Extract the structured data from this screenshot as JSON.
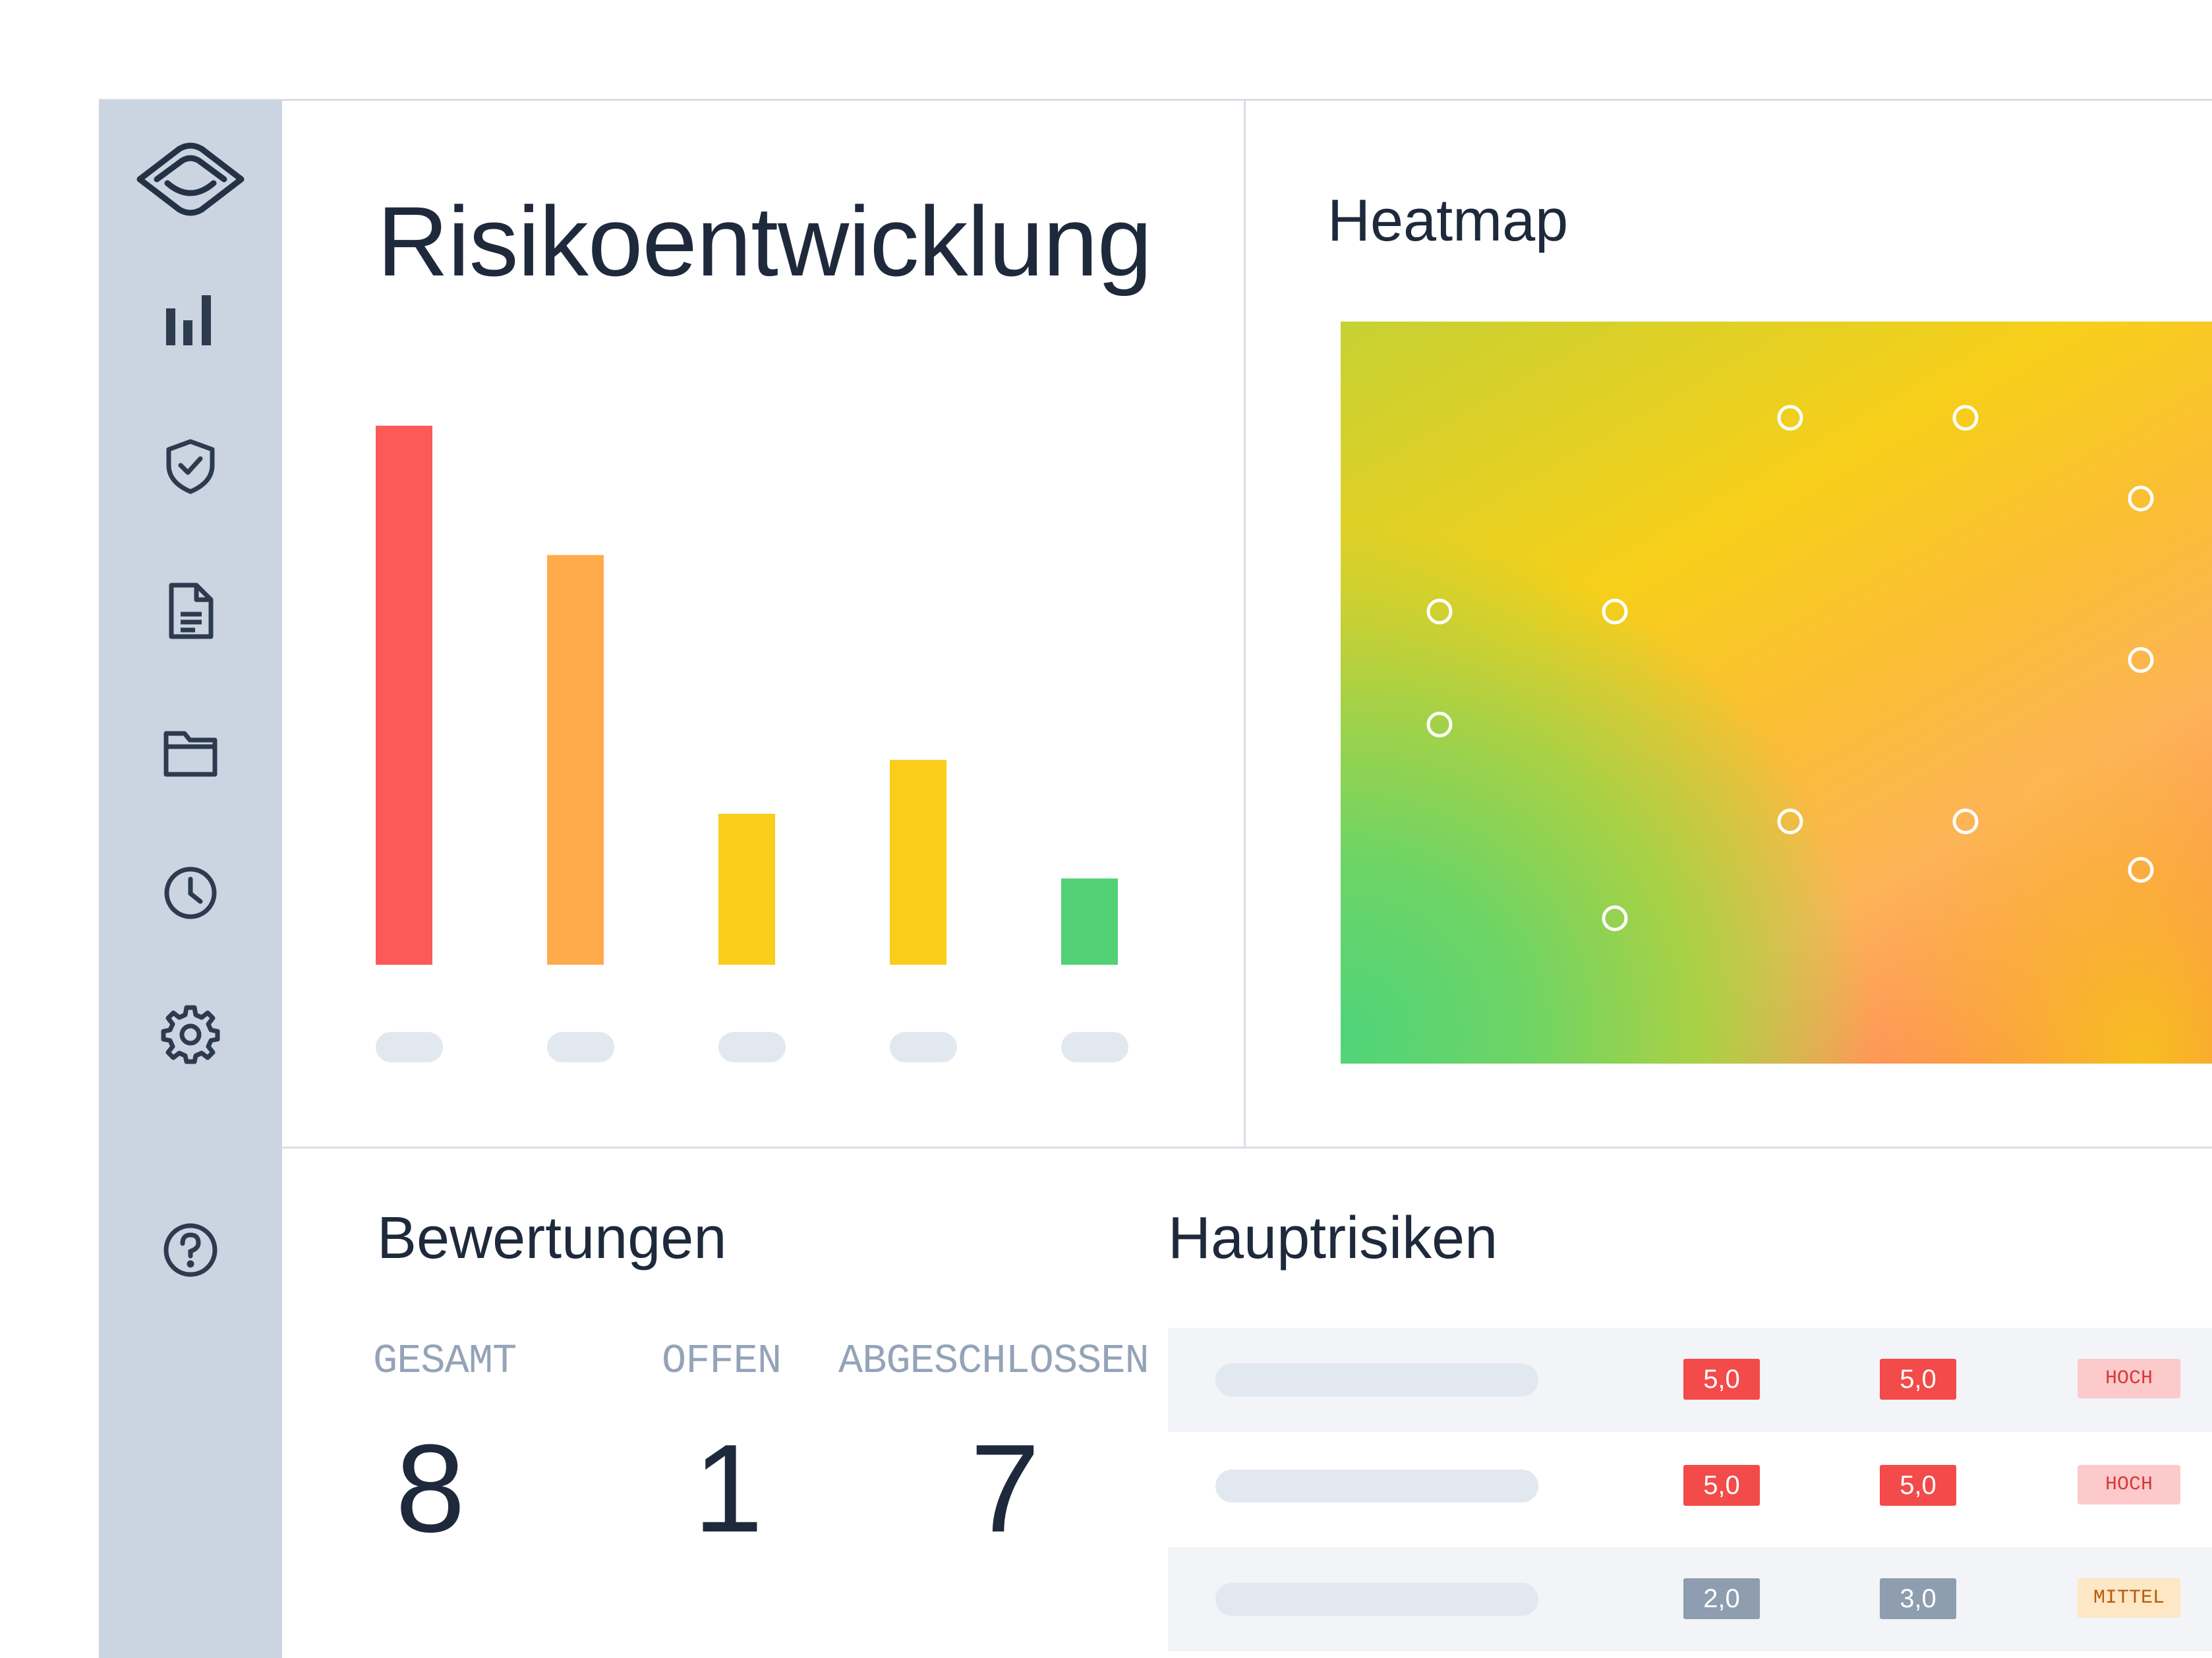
{
  "sidebar": {
    "logo_icon": "eye-logo-icon",
    "items": [
      {
        "icon": "bar-chart-icon"
      },
      {
        "icon": "shield-check-icon"
      },
      {
        "icon": "document-icon"
      },
      {
        "icon": "folder-icon"
      },
      {
        "icon": "clock-icon"
      },
      {
        "icon": "gear-icon"
      },
      {
        "icon": "help-circle-icon"
      }
    ]
  },
  "risk_chart": {
    "title": "Risikoentwicklung",
    "chart_data": {
      "type": "bar",
      "categories": [
        "",
        "",
        "",
        "",
        ""
      ],
      "values": [
        100,
        76,
        28,
        38,
        16
      ],
      "colors": [
        "#fc5a58",
        "#ffaa4b",
        "#f9cd19",
        "#f9cd19",
        "#52d175"
      ],
      "ylim": [
        0,
        100
      ],
      "grid": false
    }
  },
  "heatmap": {
    "title": "Heatmap",
    "colors": {
      "low": "#52d476",
      "mid": "#f7cf1a",
      "high": "#ff7557"
    },
    "points": [
      {
        "x": 3,
        "y": 4
      },
      {
        "x": 4,
        "y": 4
      },
      {
        "x": 5,
        "y": 3.5
      },
      {
        "x": 1,
        "y": 2.8
      },
      {
        "x": 2,
        "y": 2.8
      },
      {
        "x": 5,
        "y": 2.5
      },
      {
        "x": 1,
        "y": 2.1
      },
      {
        "x": 3,
        "y": 1.5
      },
      {
        "x": 4,
        "y": 1.5
      },
      {
        "x": 5,
        "y": 1.2
      },
      {
        "x": 2,
        "y": 0.9
      }
    ]
  },
  "assessments": {
    "title": "Bewertungen",
    "stats": [
      {
        "label": "GESAMT",
        "value": "8"
      },
      {
        "label": "OFFEN",
        "value": "1"
      },
      {
        "label": "ABGESCHLOSSEN",
        "value": "7"
      }
    ]
  },
  "top_risks": {
    "title": "Hauptrisiken",
    "rows": [
      {
        "score_a": "5,0",
        "score_b": "5,0",
        "level": "HOCH",
        "severity": "high"
      },
      {
        "score_a": "5,0",
        "score_b": "5,0",
        "level": "HOCH",
        "severity": "high"
      },
      {
        "score_a": "2,0",
        "score_b": "3,0",
        "level": "MITTEL",
        "severity": "medium"
      }
    ],
    "colors": {
      "high_score": "#f34a4a",
      "low_score": "#8e9db0",
      "high_level_bg": "#fccaca",
      "high_level_text": "#d63a3a",
      "medium_level_bg": "#fde7c4",
      "medium_level_text": "#b95a0a"
    }
  }
}
